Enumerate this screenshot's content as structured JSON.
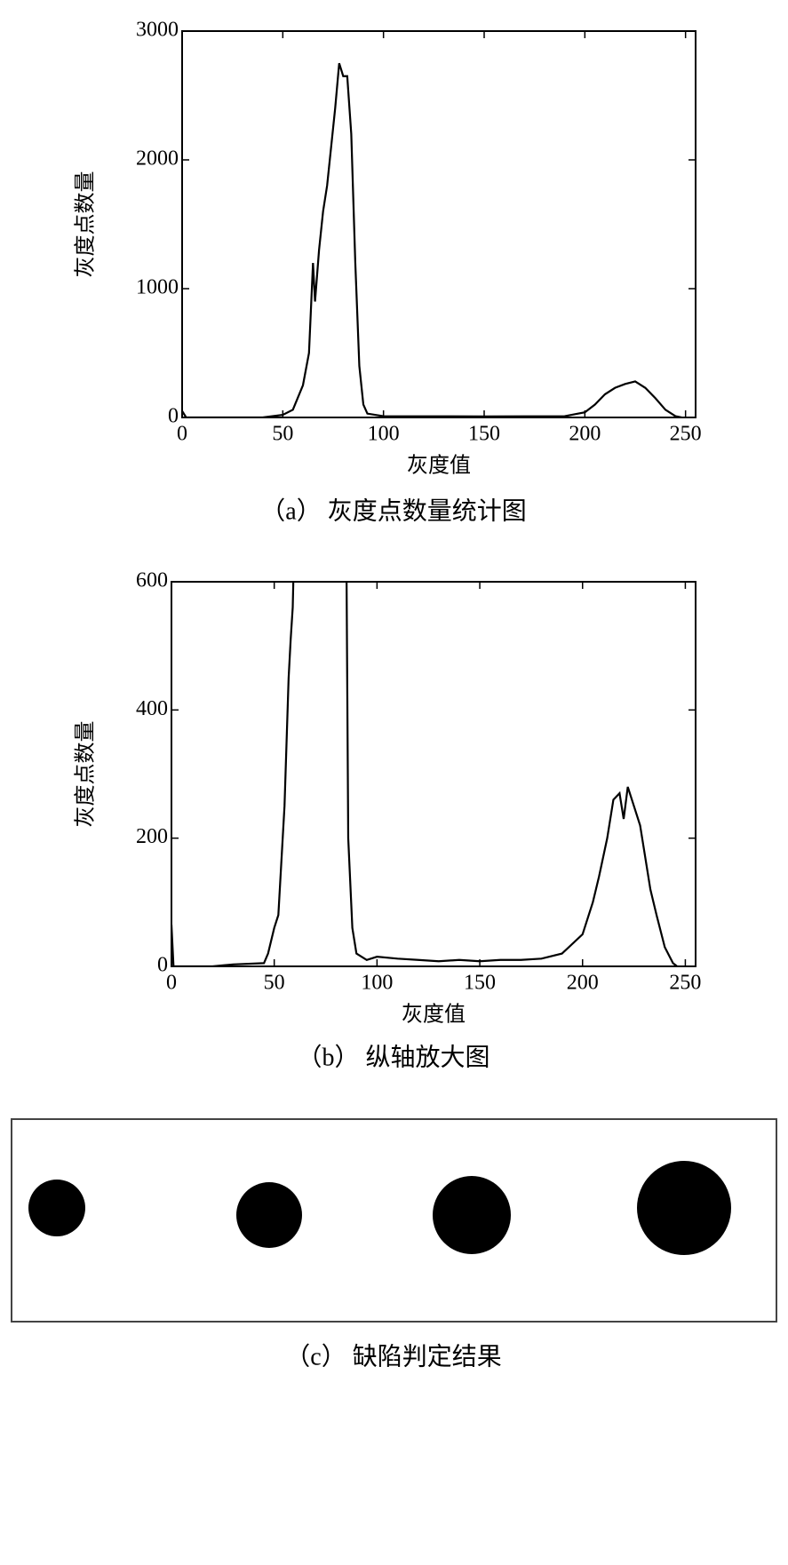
{
  "chart_data": [
    {
      "type": "line",
      "caption": "（a） 灰度点数量统计图",
      "xlabel": "灰度值",
      "ylabel": "灰度点数量",
      "color": "#000000",
      "x": [
        0,
        2,
        10,
        40,
        50,
        55,
        60,
        63,
        65,
        66,
        68,
        70,
        72,
        74,
        76,
        78,
        80,
        82,
        84,
        86,
        88,
        90,
        92,
        100,
        150,
        190,
        200,
        205,
        210,
        215,
        220,
        225,
        230,
        235,
        240,
        245,
        248
      ],
      "values": [
        50,
        0,
        0,
        0,
        20,
        60,
        250,
        500,
        1200,
        900,
        1300,
        1600,
        1800,
        2100,
        2400,
        2750,
        2650,
        2650,
        2200,
        1200,
        400,
        100,
        30,
        10,
        8,
        10,
        40,
        100,
        180,
        230,
        260,
        280,
        230,
        150,
        60,
        10,
        0
      ],
      "xlim": [
        0,
        255
      ],
      "ylim": [
        0,
        3000
      ],
      "xticks": [
        0,
        50,
        100,
        150,
        200,
        250
      ],
      "yticks": [
        0,
        1000,
        2000,
        3000
      ]
    },
    {
      "type": "line",
      "caption": "（b） 纵轴放大图",
      "xlabel": "灰度值",
      "ylabel": "灰度点数量",
      "color": "#000000",
      "x": [
        0,
        1,
        20,
        30,
        45,
        47,
        50,
        52,
        55,
        57,
        58,
        59,
        60,
        85,
        86,
        88,
        90,
        95,
        100,
        110,
        120,
        130,
        140,
        150,
        160,
        170,
        180,
        190,
        200,
        205,
        208,
        212,
        215,
        218,
        220,
        222,
        225,
        228,
        230,
        233,
        236,
        240,
        244,
        246
      ],
      "values": [
        65,
        0,
        0,
        3,
        5,
        20,
        60,
        80,
        250,
        450,
        510,
        560,
        700,
        700,
        200,
        60,
        20,
        10,
        15,
        12,
        10,
        8,
        10,
        8,
        10,
        10,
        12,
        20,
        50,
        100,
        140,
        200,
        260,
        270,
        230,
        280,
        250,
        220,
        180,
        120,
        80,
        30,
        5,
        0
      ],
      "xlim": [
        0,
        255
      ],
      "ylim": [
        0,
        600
      ],
      "xticks": [
        0,
        50,
        100,
        150,
        200,
        250
      ],
      "yticks": [
        0,
        200,
        400,
        600
      ]
    }
  ],
  "figure_c": {
    "caption": "（c） 缺陷判定结果"
  }
}
